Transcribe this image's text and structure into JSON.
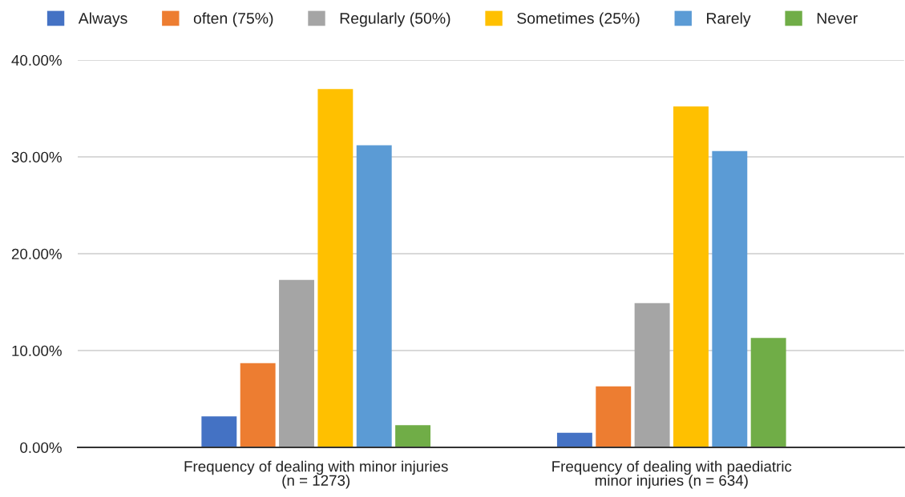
{
  "chart_data": {
    "type": "bar",
    "categories": [
      "Frequency of dealing with minor injuries (n = 1273)",
      "Frequency of dealing with paediatric minor injuries (n = 634)"
    ],
    "series": [
      {
        "name": "Always",
        "color": "#4472c4",
        "values": [
          3.2,
          1.5
        ]
      },
      {
        "name": "often (75%)",
        "color": "#ed7d31",
        "values": [
          8.7,
          6.3
        ]
      },
      {
        "name": "Regularly (50%)",
        "color": "#a5a5a5",
        "values": [
          17.3,
          14.9
        ]
      },
      {
        "name": "Sometimes (25%)",
        "color": "#ffc000",
        "values": [
          37.0,
          35.2
        ]
      },
      {
        "name": "Rarely",
        "color": "#5b9bd5",
        "values": [
          31.2,
          30.6
        ]
      },
      {
        "name": "Never",
        "color": "#70ad47",
        "values": [
          2.3,
          11.3
        ]
      }
    ],
    "ylim": [
      0,
      40
    ],
    "yticks": [
      {
        "value": 0,
        "label": "0.00%"
      },
      {
        "value": 10,
        "label": "10.00%"
      },
      {
        "value": 20,
        "label": "20.00%"
      },
      {
        "value": 30,
        "label": "30.00%"
      },
      {
        "value": 40,
        "label": "40.00%"
      }
    ],
    "grid": "y",
    "legend": "top"
  }
}
